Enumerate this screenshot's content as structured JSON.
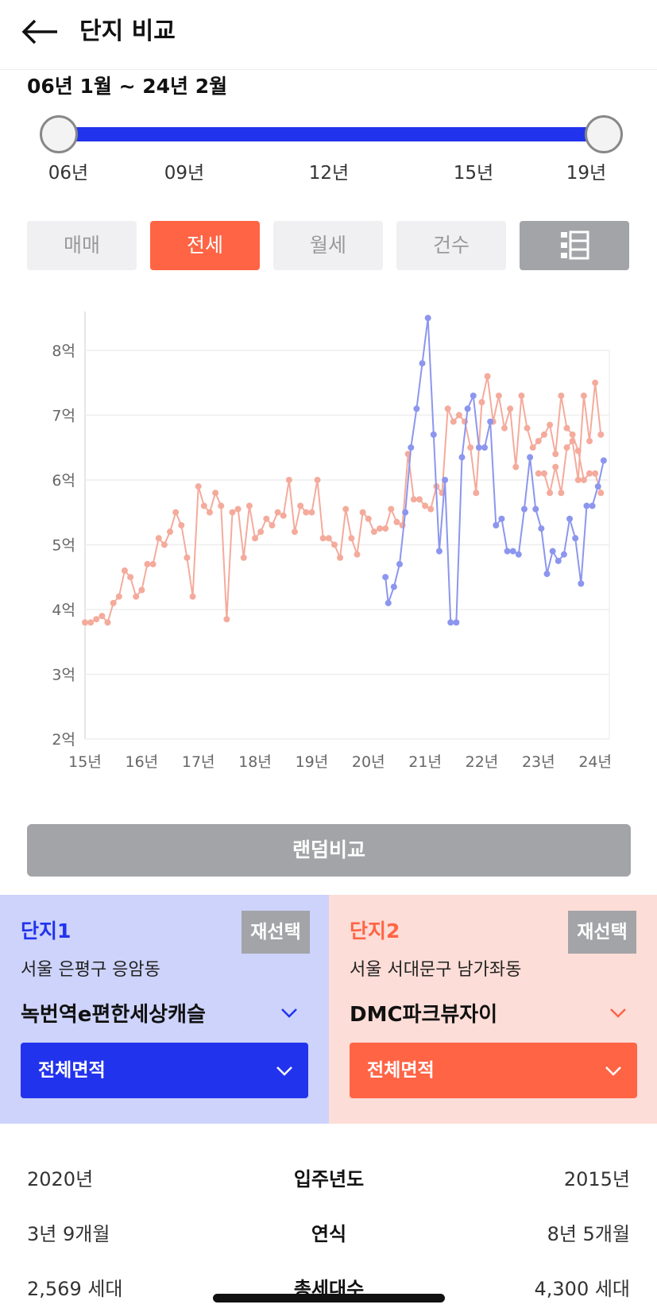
{
  "header": {
    "title": "단지 비교"
  },
  "range": {
    "text": "06년 1월 ~ 24년 2월",
    "ticks": [
      "06년",
      "09년",
      "12년",
      "15년",
      "19년"
    ]
  },
  "tabs": [
    {
      "label": "매매",
      "active": false
    },
    {
      "label": "전세",
      "active": true
    },
    {
      "label": "월세",
      "active": false
    },
    {
      "label": "건수",
      "active": false
    }
  ],
  "colors": {
    "accent_blue": "#2233ee",
    "accent_orange": "#ff6445",
    "series1": "#8c96ee",
    "series2": "#f4ab9c"
  },
  "chart_data": {
    "type": "line",
    "x_tick_labels": [
      "15년",
      "16년",
      "17년",
      "18년",
      "19년",
      "20년",
      "21년",
      "22년",
      "23년",
      "24년"
    ],
    "y_tick_labels": [
      "2억",
      "3억",
      "4억",
      "5억",
      "6억",
      "7억",
      "8억"
    ],
    "xlim": [
      2015.0,
      2024.25
    ],
    "ylim": [
      2,
      8.6
    ],
    "grid": true,
    "series": [
      {
        "color": "#f4ab9c",
        "x": [
          2015.0,
          2015.1,
          2015.2,
          2015.3,
          2015.4,
          2015.5,
          2015.6,
          2015.7,
          2015.8,
          2015.9,
          2016.0,
          2016.1,
          2016.2,
          2016.3,
          2016.4,
          2016.5,
          2016.6,
          2016.7,
          2016.8,
          2016.9,
          2017.0,
          2017.1,
          2017.2,
          2017.3,
          2017.4,
          2017.5,
          2017.6,
          2017.7,
          2017.8,
          2017.9,
          2018.0,
          2018.1,
          2018.2,
          2018.3,
          2018.4,
          2018.5,
          2018.6,
          2018.7,
          2018.8,
          2018.9,
          2019.0,
          2019.1,
          2019.2,
          2019.3,
          2019.4,
          2019.5,
          2019.6,
          2019.7,
          2019.8,
          2019.9,
          2020.0,
          2020.1,
          2020.2,
          2020.3,
          2020.4,
          2020.5,
          2020.6,
          2020.7,
          2020.8,
          2020.9,
          2021.0,
          2021.1,
          2021.2,
          2021.3,
          2021.4,
          2021.5,
          2021.6,
          2021.7,
          2021.8,
          2021.9,
          2022.0,
          2022.1,
          2022.2,
          2022.3,
          2022.4,
          2022.5,
          2022.6,
          2022.7,
          2022.8,
          2022.9,
          2023.0,
          2023.1,
          2023.2,
          2023.3,
          2023.4,
          2023.5,
          2023.6,
          2023.7,
          2023.8,
          2023.9,
          2024.0,
          2024.1
        ],
        "values": [
          3.8,
          3.8,
          3.85,
          3.9,
          3.8,
          4.1,
          4.2,
          4.6,
          4.5,
          4.2,
          4.3,
          4.7,
          4.7,
          5.1,
          5.0,
          5.2,
          5.5,
          5.3,
          4.8,
          4.2,
          5.9,
          5.6,
          5.5,
          5.8,
          5.6,
          3.85,
          5.5,
          5.55,
          4.8,
          5.6,
          5.1,
          5.2,
          5.4,
          5.3,
          5.5,
          5.45,
          6.0,
          5.2,
          5.6,
          5.5,
          5.5,
          6.0,
          5.1,
          5.1,
          5.0,
          4.8,
          5.55,
          5.1,
          4.85,
          5.5,
          5.4,
          5.2,
          5.25,
          5.25,
          5.55,
          5.35,
          5.3,
          6.4,
          5.7,
          5.7,
          5.6,
          5.55,
          5.9,
          5.8,
          7.1,
          6.9,
          7.0,
          6.9,
          6.5,
          5.8,
          7.2,
          7.6,
          6.9,
          7.3,
          6.8,
          7.1,
          6.2,
          7.3,
          6.8,
          6.5,
          6.6,
          6.7,
          6.85,
          6.4,
          7.3,
          6.8,
          6.7,
          6.45,
          6.0,
          6.1,
          6.1,
          5.8
        ],
        "trail_x": [
          2023.0,
          2023.1,
          2023.2,
          2023.3,
          2023.4,
          2023.5,
          2023.6,
          2023.7,
          2023.8,
          2023.9,
          2024.0,
          2024.1
        ],
        "trail_values": [
          6.1,
          6.1,
          5.8,
          6.2,
          5.8,
          6.5,
          6.6,
          6.0,
          7.3,
          6.6,
          7.5,
          6.7
        ]
      },
      {
        "color": "#8c96ee",
        "x": [
          2020.3,
          2020.35,
          2020.45,
          2020.55,
          2020.65,
          2020.75,
          2020.85,
          2020.95,
          2021.05,
          2021.15,
          2021.25,
          2021.35,
          2021.45,
          2021.55,
          2021.65,
          2021.75,
          2021.85,
          2021.95,
          2022.05,
          2022.15,
          2022.25,
          2022.35,
          2022.45,
          2022.55,
          2022.65,
          2022.75,
          2022.85,
          2022.95,
          2023.05,
          2023.15,
          2023.25,
          2023.35,
          2023.45,
          2023.55,
          2023.65,
          2023.75,
          2023.85,
          2023.95,
          2024.05,
          2024.15
        ],
        "values": [
          4.5,
          4.1,
          4.35,
          4.7,
          5.5,
          6.5,
          7.1,
          7.8,
          8.5,
          6.7,
          4.9,
          6.0,
          3.8,
          3.8,
          6.35,
          7.1,
          7.3,
          6.5,
          6.5,
          6.9,
          5.3,
          5.4,
          4.9,
          4.9,
          4.85,
          5.55,
          6.35,
          5.55,
          5.25,
          4.55,
          4.9,
          4.75,
          4.85,
          5.4,
          5.1,
          4.4,
          5.6,
          5.6,
          5.9,
          6.3
        ]
      }
    ]
  },
  "random_compare": {
    "label": "랜덤비교"
  },
  "complex1": {
    "label": "단지1",
    "reselect": "재선택",
    "location": "서울 은평구 응암동",
    "name": "녹번역e편한세상캐슬",
    "area": "전체면적"
  },
  "complex2": {
    "label": "단지2",
    "reselect": "재선택",
    "location": "서울 서대문구 남가좌동",
    "name": "DMC파크뷰자이",
    "area": "전체면적"
  },
  "comparison": [
    {
      "left": "2020년",
      "label": "입주년도",
      "right": "2015년"
    },
    {
      "left": "3년 9개월",
      "label": "연식",
      "right": "8년 5개월"
    },
    {
      "left": "2,569 세대",
      "label": "총세대수",
      "right": "4,300 세대"
    }
  ]
}
